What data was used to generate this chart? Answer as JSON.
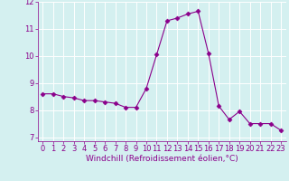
{
  "x": [
    0,
    1,
    2,
    3,
    4,
    5,
    6,
    7,
    8,
    9,
    10,
    11,
    12,
    13,
    14,
    15,
    16,
    17,
    18,
    19,
    20,
    21,
    22,
    23
  ],
  "y": [
    8.6,
    8.6,
    8.5,
    8.45,
    8.35,
    8.35,
    8.3,
    8.25,
    8.1,
    8.1,
    8.8,
    10.05,
    11.3,
    11.4,
    11.55,
    11.65,
    10.1,
    8.15,
    7.65,
    7.95,
    7.5,
    7.5,
    7.5,
    7.25
  ],
  "line_color": "#8b008b",
  "marker": "D",
  "marker_size": 2.5,
  "bg_color": "#d4f0f0",
  "grid_color": "#ffffff",
  "xlabel": "Windchill (Refroidissement éolien,°C)",
  "xlabel_color": "#8b008b",
  "tick_color": "#8b008b",
  "spine_color": "#8b008b",
  "ylim": [
    6.85,
    12.0
  ],
  "xlim": [
    -0.5,
    23.5
  ],
  "yticks": [
    7,
    8,
    9,
    10,
    11,
    12
  ],
  "xticks": [
    0,
    1,
    2,
    3,
    4,
    5,
    6,
    7,
    8,
    9,
    10,
    11,
    12,
    13,
    14,
    15,
    16,
    17,
    18,
    19,
    20,
    21,
    22,
    23
  ],
  "tick_labelsize": 6,
  "xlabel_fontsize": 6.5
}
